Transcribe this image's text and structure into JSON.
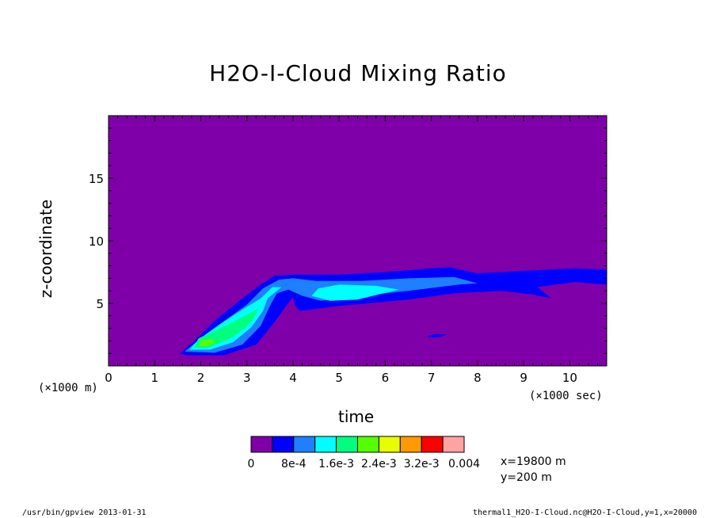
{
  "chart_data": {
    "type": "heatmap",
    "title": "H2O-I-Cloud Mixing Ratio",
    "xlabel": "time",
    "ylabel": "z-coordinate",
    "x_unit_label": "(×1000 sec)",
    "y_unit_label": "(×1000 m)",
    "xlim": [
      0,
      10.8
    ],
    "ylim": [
      0,
      20
    ],
    "x_ticks": [
      "0",
      "1",
      "2",
      "3",
      "4",
      "5",
      "6",
      "7",
      "8",
      "9",
      "10"
    ],
    "y_ticks": [
      "5",
      "10",
      "15"
    ],
    "grid": false,
    "colorbar": {
      "levels": [
        0,
        0.0004,
        0.0008,
        0.0012,
        0.0016,
        0.002,
        0.0024,
        0.0028,
        0.0032,
        0.0036,
        0.004
      ],
      "colors": [
        "#7f00a8",
        "#0000ff",
        "#1e7fff",
        "#00ffff",
        "#00ff7f",
        "#55ff00",
        "#e6ff00",
        "#ff9900",
        "#ff0000",
        "#ffa3a3"
      ],
      "labels": [
        "0",
        "8e-4",
        "1.6e-3",
        "2.4e-3",
        "3.2e-3",
        "0.004"
      ],
      "background_color": "#7f00a8"
    },
    "contours": [
      {
        "level": "0.0004",
        "color": "#0000ff",
        "polygon": [
          [
            1.55,
            1.0
          ],
          [
            1.7,
            0.85
          ],
          [
            2.5,
            0.85
          ],
          [
            3.2,
            1.7
          ],
          [
            3.6,
            3.5
          ],
          [
            3.85,
            4.8
          ],
          [
            4.0,
            5.5
          ],
          [
            4.05,
            4.8
          ],
          [
            4.15,
            4.4
          ],
          [
            5.0,
            4.8
          ],
          [
            6.5,
            5.3
          ],
          [
            7.5,
            5.8
          ],
          [
            8.5,
            6.0
          ],
          [
            9.2,
            5.7
          ],
          [
            9.6,
            5.4
          ],
          [
            9.3,
            6.3
          ],
          [
            10.1,
            6.7
          ],
          [
            10.8,
            6.5
          ],
          [
            10.8,
            7.7
          ],
          [
            10.1,
            7.8
          ],
          [
            9.0,
            7.6
          ],
          [
            8.0,
            7.4
          ],
          [
            7.4,
            7.9
          ],
          [
            7.0,
            7.8
          ],
          [
            6.0,
            7.5
          ],
          [
            5.0,
            7.3
          ],
          [
            4.0,
            7.3
          ],
          [
            3.6,
            7.2
          ],
          [
            3.3,
            6.5
          ],
          [
            2.8,
            5.1
          ],
          [
            2.3,
            3.6
          ],
          [
            1.8,
            1.8
          ]
        ]
      },
      {
        "level": "0.0004",
        "color": "#0000ff",
        "polygon": [
          [
            6.9,
            2.4
          ],
          [
            7.1,
            2.55
          ],
          [
            7.35,
            2.5
          ],
          [
            7.15,
            2.3
          ],
          [
            6.95,
            2.3
          ]
        ]
      },
      {
        "level": "0.0008",
        "color": "#1e7fff",
        "polygon": [
          [
            1.65,
            1.15
          ],
          [
            2.3,
            1.05
          ],
          [
            2.9,
            1.7
          ],
          [
            3.3,
            3.2
          ],
          [
            3.5,
            4.8
          ],
          [
            3.65,
            5.8
          ],
          [
            3.9,
            6.1
          ],
          [
            4.2,
            5.6
          ],
          [
            4.6,
            5.2
          ],
          [
            5.5,
            5.6
          ],
          [
            6.5,
            6.0
          ],
          [
            7.6,
            6.5
          ],
          [
            8.0,
            6.6
          ],
          [
            7.5,
            7.1
          ],
          [
            6.5,
            7.0
          ],
          [
            5.5,
            6.8
          ],
          [
            4.5,
            6.8
          ],
          [
            4.0,
            7.0
          ],
          [
            3.7,
            6.9
          ],
          [
            3.35,
            6.2
          ],
          [
            3.0,
            4.9
          ],
          [
            2.4,
            3.3
          ],
          [
            1.9,
            1.9
          ]
        ]
      },
      {
        "level": "0.0012",
        "color": "#00ffff",
        "polygon": [
          [
            1.75,
            1.3
          ],
          [
            2.2,
            1.3
          ],
          [
            2.7,
            1.9
          ],
          [
            3.1,
            3.1
          ],
          [
            3.35,
            4.4
          ],
          [
            3.45,
            5.4
          ],
          [
            3.75,
            6.3
          ],
          [
            3.55,
            6.3
          ],
          [
            3.3,
            5.4
          ],
          [
            2.9,
            4.5
          ],
          [
            2.4,
            3.3
          ],
          [
            1.95,
            2.1
          ]
        ]
      },
      {
        "level": "0.0012",
        "color": "#00ffff",
        "polygon": [
          [
            4.4,
            5.6
          ],
          [
            4.8,
            5.2
          ],
          [
            5.4,
            5.3
          ],
          [
            5.9,
            5.75
          ],
          [
            6.3,
            6.1
          ],
          [
            5.8,
            6.4
          ],
          [
            5.0,
            6.5
          ],
          [
            4.55,
            6.2
          ]
        ]
      },
      {
        "level": "0.0016",
        "color": "#00ff7f",
        "polygon": [
          [
            1.85,
            1.45
          ],
          [
            2.15,
            1.45
          ],
          [
            2.6,
            2.1
          ],
          [
            2.95,
            3.0
          ],
          [
            3.15,
            3.8
          ],
          [
            3.25,
            4.6
          ],
          [
            3.1,
            4.3
          ],
          [
            2.75,
            3.6
          ],
          [
            2.3,
            2.8
          ],
          [
            1.95,
            2.2
          ]
        ]
      },
      {
        "level": "0.002",
        "color": "#55ff00",
        "polygon": [
          [
            1.95,
            1.6
          ],
          [
            2.15,
            1.55
          ],
          [
            2.35,
            1.95
          ],
          [
            2.2,
            2.15
          ],
          [
            2.0,
            2.05
          ]
        ]
      }
    ],
    "annotations": [
      "x=19800 m",
      "y=200 m"
    ]
  },
  "footer": {
    "left": "/usr/bin/gpview  2013-01-31",
    "right": "thermal1_H2O-I-Cloud.nc@H2O-I-Cloud,y=1,x=20000"
  }
}
